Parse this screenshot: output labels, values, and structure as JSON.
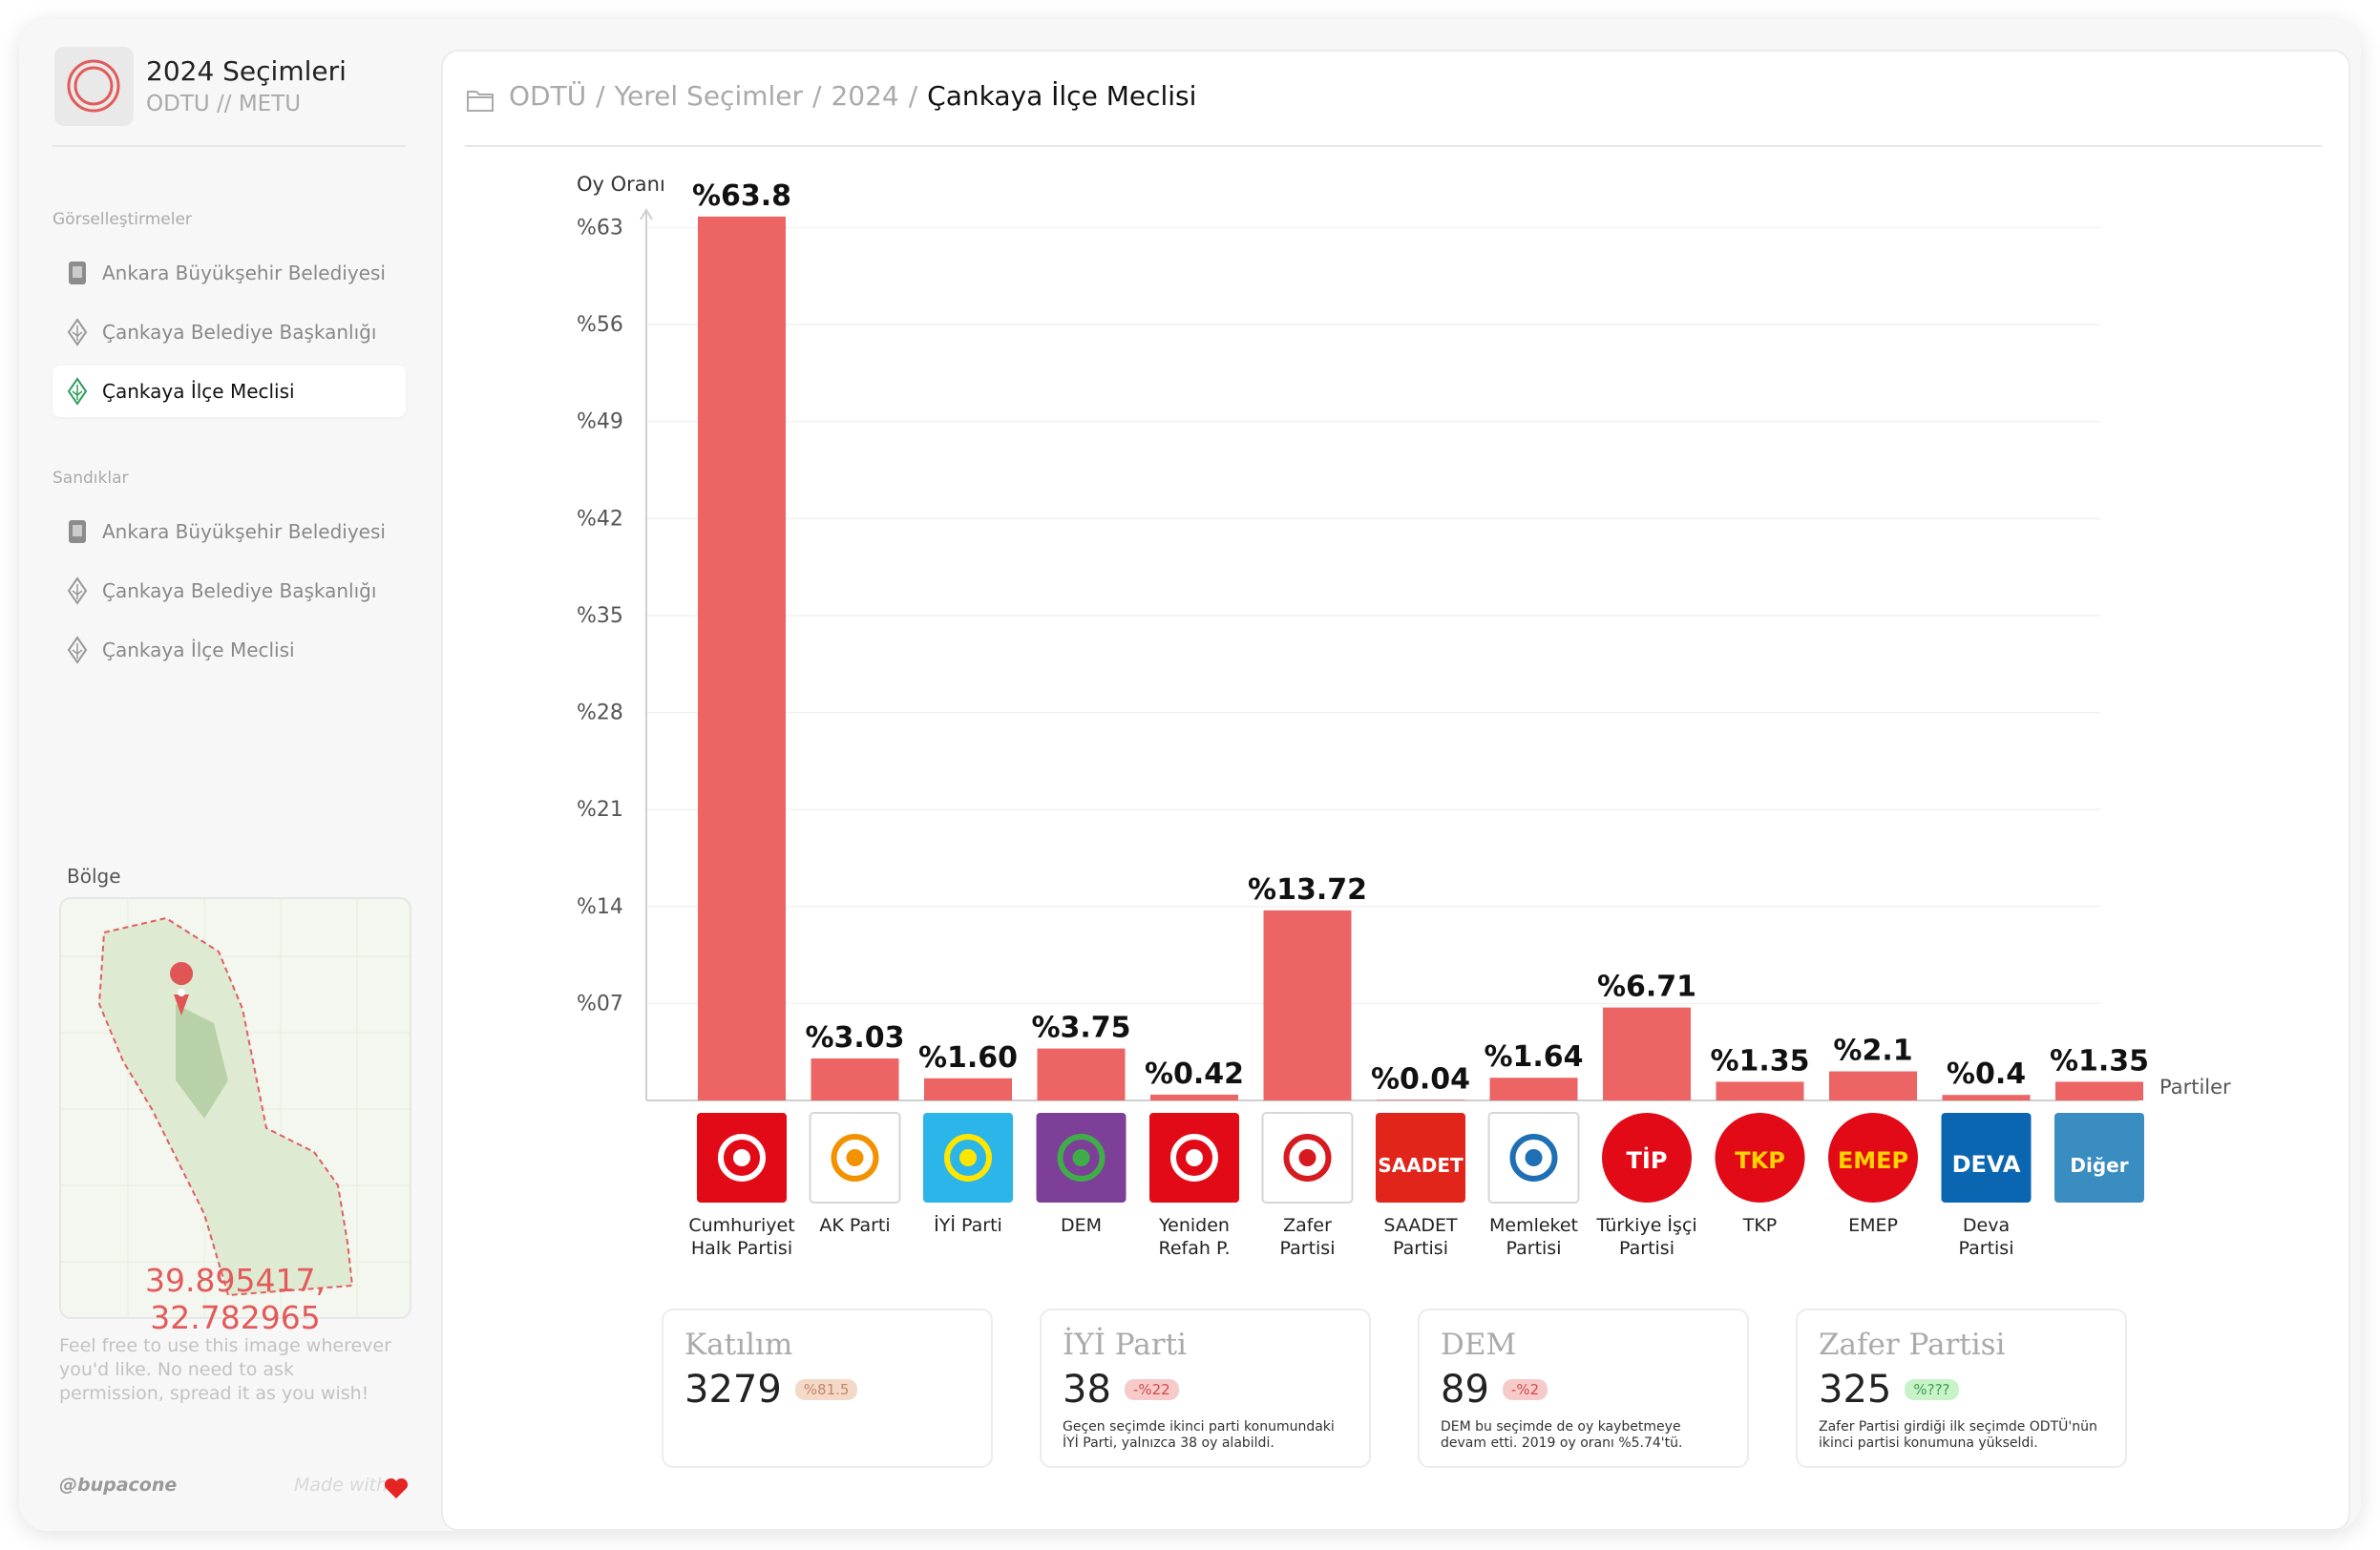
{
  "sidebar": {
    "title": "2024 Seçimleri",
    "subtitle": "ODTU // METU",
    "sections": [
      {
        "heading": "Görselleştirmeler",
        "items": [
          "Ankara Büyükşehir Belediyesi",
          "Çankaya Belediye Başkanlığı",
          "Çankaya İlçe Meclisi"
        ]
      },
      {
        "heading": "Sandıklar",
        "items": [
          "Ankara Büyükşehir Belediyesi",
          "Çankaya Belediye Başkanlığı",
          "Çankaya İlçe Meclisi"
        ]
      }
    ],
    "active": {
      "section": 0,
      "item": 2
    },
    "region_heading": "Bölge",
    "coordinates": "39.895417, 32.782965",
    "note": "Feel free to use this image wherever you'd like. No need to ask permission, spread it as you wish!",
    "author": "@bupacone",
    "made_with": "Made with"
  },
  "breadcrumb": {
    "items": [
      "ODTÜ",
      "Yerel Seçimler",
      "2024",
      "Çankaya İlçe Meclisi"
    ],
    "separator": "/"
  },
  "chart_data": {
    "type": "bar",
    "y_label": "Oy Oranı",
    "x_label": "Partiler",
    "categories": [
      "Cumhuriyet Halk Partisi",
      "AK Parti",
      "İYİ Parti",
      "DEM",
      "Yeniden Refah P.",
      "Zafer Partisi",
      "SAADET Partisi",
      "Memleket Partisi",
      "Türkiye İşçi Partisi",
      "TKP",
      "EMEP",
      "Deva Partisi",
      null
    ],
    "values": [
      63.8,
      3.03,
      1.6,
      3.75,
      0.42,
      13.72,
      0.04,
      1.64,
      6.71,
      1.35,
      2.1,
      0.4,
      1.35
    ],
    "value_labels": [
      "%63.8",
      "%3.03",
      "%1.60",
      "%3.75",
      "%0.42",
      "%13.72",
      "%0.04",
      "%1.64",
      "%6.71",
      "%1.35",
      "%2.1",
      "%0.4",
      "%1.35"
    ],
    "color": "#ec6463",
    "ylim": [
      0,
      64
    ],
    "yticks": [
      {
        "value": 7,
        "label": "%07"
      },
      {
        "value": 14,
        "label": "%14"
      },
      {
        "value": 21,
        "label": "%21"
      },
      {
        "value": 28,
        "label": "%28"
      },
      {
        "value": 35,
        "label": "%35"
      },
      {
        "value": 42,
        "label": "%42"
      },
      {
        "value": 49,
        "label": "%49"
      },
      {
        "value": 56,
        "label": "%56"
      },
      {
        "value": 63,
        "label": "%63"
      }
    ],
    "grid": true,
    "logos": [
      {
        "bg": "#e30a17",
        "fg": "#ffffff",
        "shape": "square"
      },
      {
        "bg": "#ffffff",
        "fg": "#f39200",
        "shape": "square"
      },
      {
        "bg": "#2bb5e8",
        "fg": "#ffe600",
        "shape": "square"
      },
      {
        "bg": "#7d3f98",
        "fg": "#3fae49",
        "shape": "square"
      },
      {
        "bg": "#e30a17",
        "fg": "#ffffff",
        "shape": "square"
      },
      {
        "bg": "#ffffff",
        "fg": "#d71920",
        "shape": "square"
      },
      {
        "bg": "#e1251b",
        "fg": "#ffffff",
        "shape": "square",
        "text": "SAADET"
      },
      {
        "bg": "#ffffff",
        "fg": "#1f6fb5",
        "shape": "square"
      },
      {
        "bg": "#e30a17",
        "fg": "#ffffff",
        "shape": "circle",
        "text": "TİP"
      },
      {
        "bg": "#e30a17",
        "fg": "#ffd200",
        "shape": "circle",
        "text": "TKP"
      },
      {
        "bg": "#e30a17",
        "fg": "#ffd200",
        "shape": "circle",
        "text": "EMEP"
      },
      {
        "bg": "#0b66b2",
        "fg": "#ffffff",
        "shape": "square",
        "text": "DEVA"
      },
      {
        "bg": "#3a8dc0",
        "fg": "#ffffff",
        "shape": "square",
        "text": "Diğer"
      }
    ]
  },
  "cards": [
    {
      "title": "Katılım",
      "value": 3279,
      "badge": "%81.5",
      "badge_bg": "#f4d9c8",
      "badge_fg": "#c48664"
    },
    {
      "title": "İYİ Parti",
      "value": 38,
      "badge": "-%22",
      "badge_bg": "#f7caca",
      "badge_fg": "#d24b4b",
      "text": "Geçen seçimde ikinci parti konumundaki İYİ Parti, yalnızca 38 oy alabildi."
    },
    {
      "title": "DEM",
      "value": 89,
      "badge": "-%2",
      "badge_bg": "#f7caca",
      "badge_fg": "#d24b4b",
      "text": "DEM bu seçimde de oy kaybetmeye devam etti. 2019 oy oranı %5.74'tü."
    },
    {
      "title": "Zafer Partisi",
      "value": 325,
      "badge": "%???",
      "badge_bg": "#c8f3c8",
      "badge_fg": "#3a9e48",
      "text": "Zafer Partisi girdiği ilk seçimde ODTÜ'nün ikinci partisi konumuna yükseldi."
    }
  ]
}
